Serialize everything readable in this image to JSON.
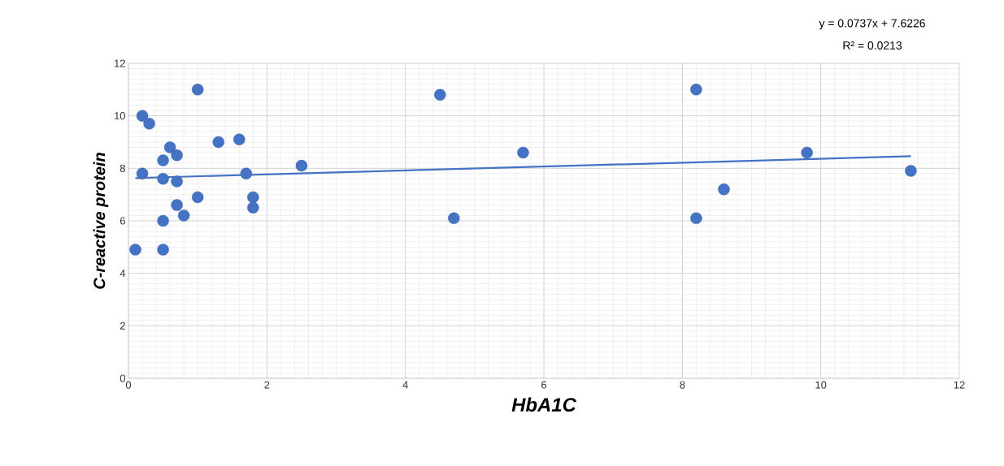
{
  "chart_data": {
    "type": "scatter",
    "xlabel": "HbA1C",
    "ylabel": "C-reactive protein",
    "annotations": [
      "y = 0.0737x + 7.6226",
      "R² = 0.0213"
    ],
    "series": [
      {
        "color": "#4472c4",
        "marker": "circle",
        "x": [
          0.1,
          0.2,
          0.3,
          0.2,
          0.5,
          0.6,
          0.7,
          0.5,
          0.7,
          0.5,
          0.5,
          0.7,
          0.8,
          1.0,
          1.0,
          1.3,
          1.6,
          1.7,
          1.8,
          1.8,
          2.5,
          4.5,
          4.7,
          5.7,
          8.2,
          8.2,
          8.6,
          9.8,
          11.3
        ],
        "values": [
          4.9,
          10.0,
          9.7,
          7.8,
          8.3,
          8.8,
          8.5,
          7.6,
          7.5,
          6.0,
          4.9,
          6.6,
          6.2,
          11.0,
          6.9,
          9.0,
          9.1,
          7.8,
          6.9,
          6.5,
          8.1,
          10.8,
          6.1,
          8.6,
          11.0,
          6.1,
          7.2,
          8.6,
          7.9
        ]
      },
      {
        "type": "line",
        "color": "#4472c4",
        "marker": "none",
        "x": [
          0.1,
          11.3
        ],
        "values": [
          7.63,
          8.46
        ]
      }
    ],
    "xlim": [
      0,
      12
    ],
    "ylim": [
      0,
      12
    ],
    "xticks": [
      0,
      2,
      4,
      6,
      8,
      10,
      12
    ],
    "yticks": [
      0,
      2,
      4,
      6,
      8,
      10,
      12
    ],
    "grid": true
  }
}
